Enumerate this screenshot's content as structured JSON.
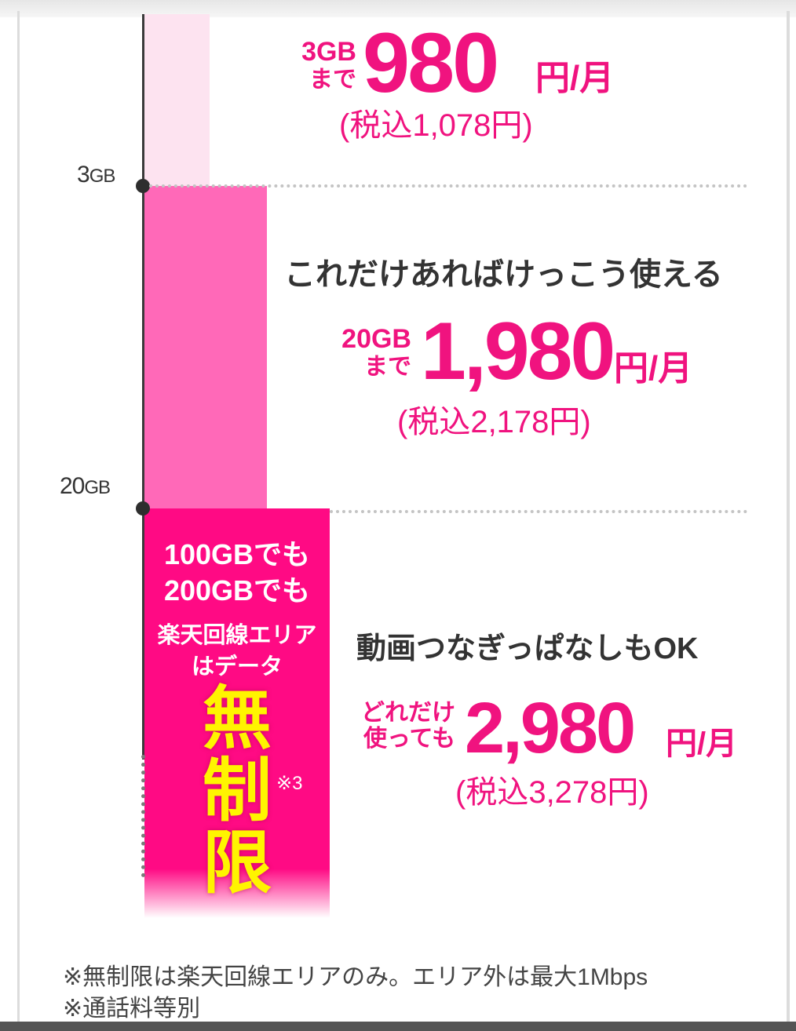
{
  "axis": {
    "tick_3gb": "3",
    "tick_3gb_unit": "GB",
    "tick_20gb": "20",
    "tick_20gb_unit": "GB"
  },
  "plans": [
    {
      "qualifier_line1": "3GB",
      "qualifier_line2": "まで",
      "price": "980",
      "unit": "円/月",
      "tax": "(税込1,078円)"
    },
    {
      "heading": "これだけあればけっこう使える",
      "qualifier_line1": "20GB",
      "qualifier_line2": "まで",
      "price": "1,980",
      "unit": "円/月",
      "tax": "(税込2,178円)"
    },
    {
      "heading": "動画つなぎっぱなしもOK",
      "qualifier_line1": "どれだけ",
      "qualifier_line2": "使っても",
      "price": "2,980",
      "unit": "円/月",
      "tax": "(税込3,278円)"
    }
  ],
  "unlimited": {
    "line1": "100GBでも",
    "line2": "200GBでも",
    "line3": "楽天回線エリア",
    "line4": "はデータ",
    "kanji1": "無",
    "kanji2": "制",
    "kanji3": "限",
    "note": "※3"
  },
  "footnotes": {
    "line1": "※無制限は楽天回線エリアのみ。エリア外は最大1Mbps",
    "line2": "※通話料等別"
  },
  "colors": {
    "accent": "#f0137f",
    "bar_light": "#fde3f0",
    "bar_mid": "#ff69b8",
    "bar_big": "#ff0a84",
    "highlight": "#fff400"
  }
}
